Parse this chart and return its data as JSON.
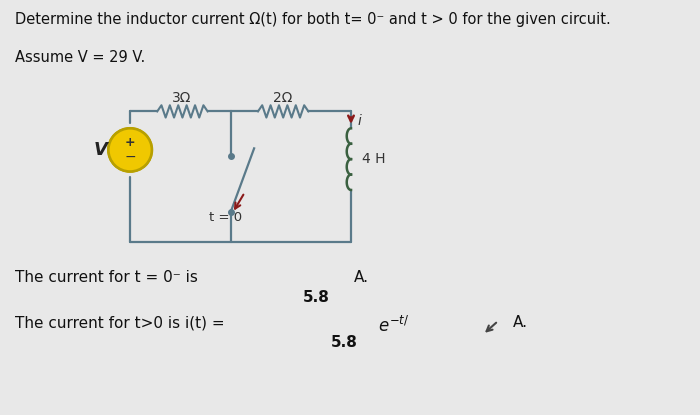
{
  "bg_color": "#e8e8e8",
  "circuit_color": "#404040",
  "resistor1_label": "3Ω",
  "resistor2_label": "2Ω",
  "inductor_label": "4 H",
  "switch_label": "t = 0",
  "voltage_label": "V",
  "current_label": "i",
  "answer_line1_pre": "The current for t = 0⁻ is",
  "answer_line1_val": "5.8",
  "answer_line1_post": "A.",
  "answer_line2_pre": "The current for t>0 is i(t) =",
  "answer_line2_val": "5.8",
  "answer_line2_post": "A.",
  "box_color": "#c8dcc8",
  "font_size_title": 10.5,
  "font_size_circuit": 10,
  "font_size_answer": 11,
  "arrow_color": "#8b1a1a",
  "wire_color": "#5a7a8a"
}
